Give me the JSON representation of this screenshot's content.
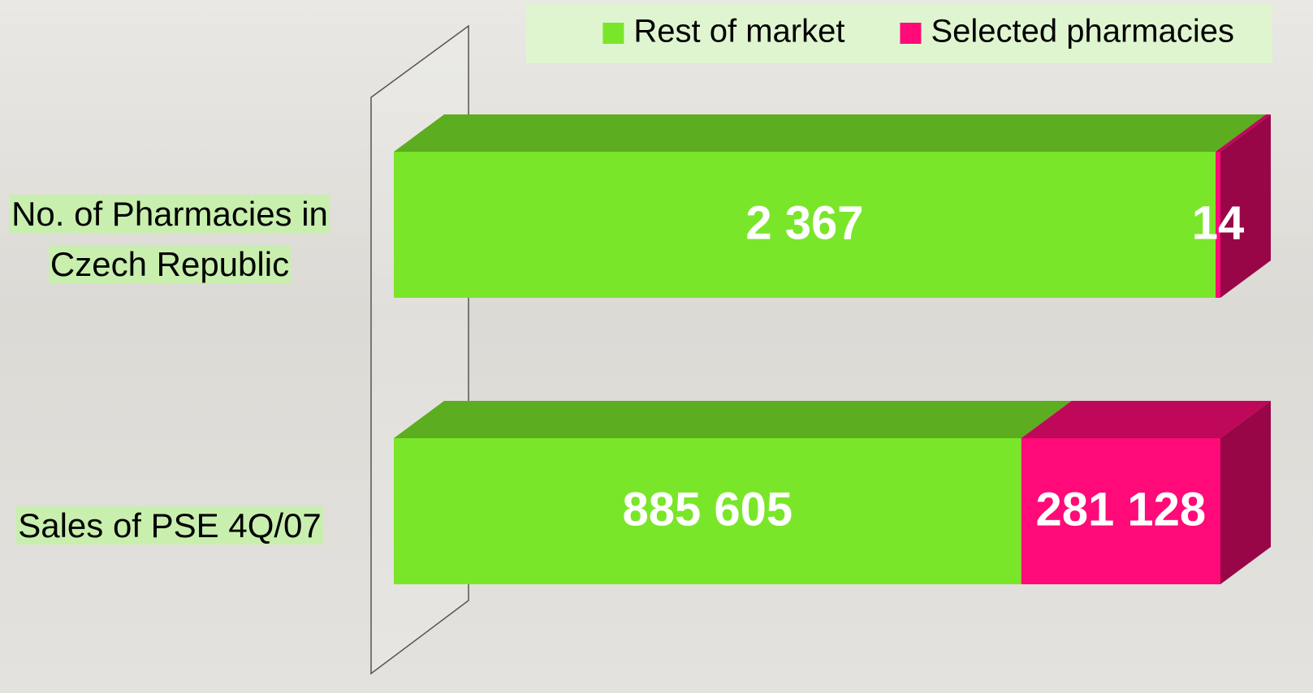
{
  "chart_data": {
    "type": "stacked-bar-100",
    "categories": [
      "No. of Pharmacies in Czech Republic",
      "Sales of PSE 4Q/07"
    ],
    "series": [
      {
        "name": "Rest of market",
        "color": "#7ae62a",
        "values": [
          2367,
          885605
        ],
        "value_labels": [
          "2 367",
          "885 605"
        ]
      },
      {
        "name": "Selected pharmacies",
        "color": "#ff0a78",
        "values": [
          14,
          281128
        ],
        "value_labels": [
          "14",
          "281 128"
        ]
      }
    ],
    "legend": "top-right"
  }
}
